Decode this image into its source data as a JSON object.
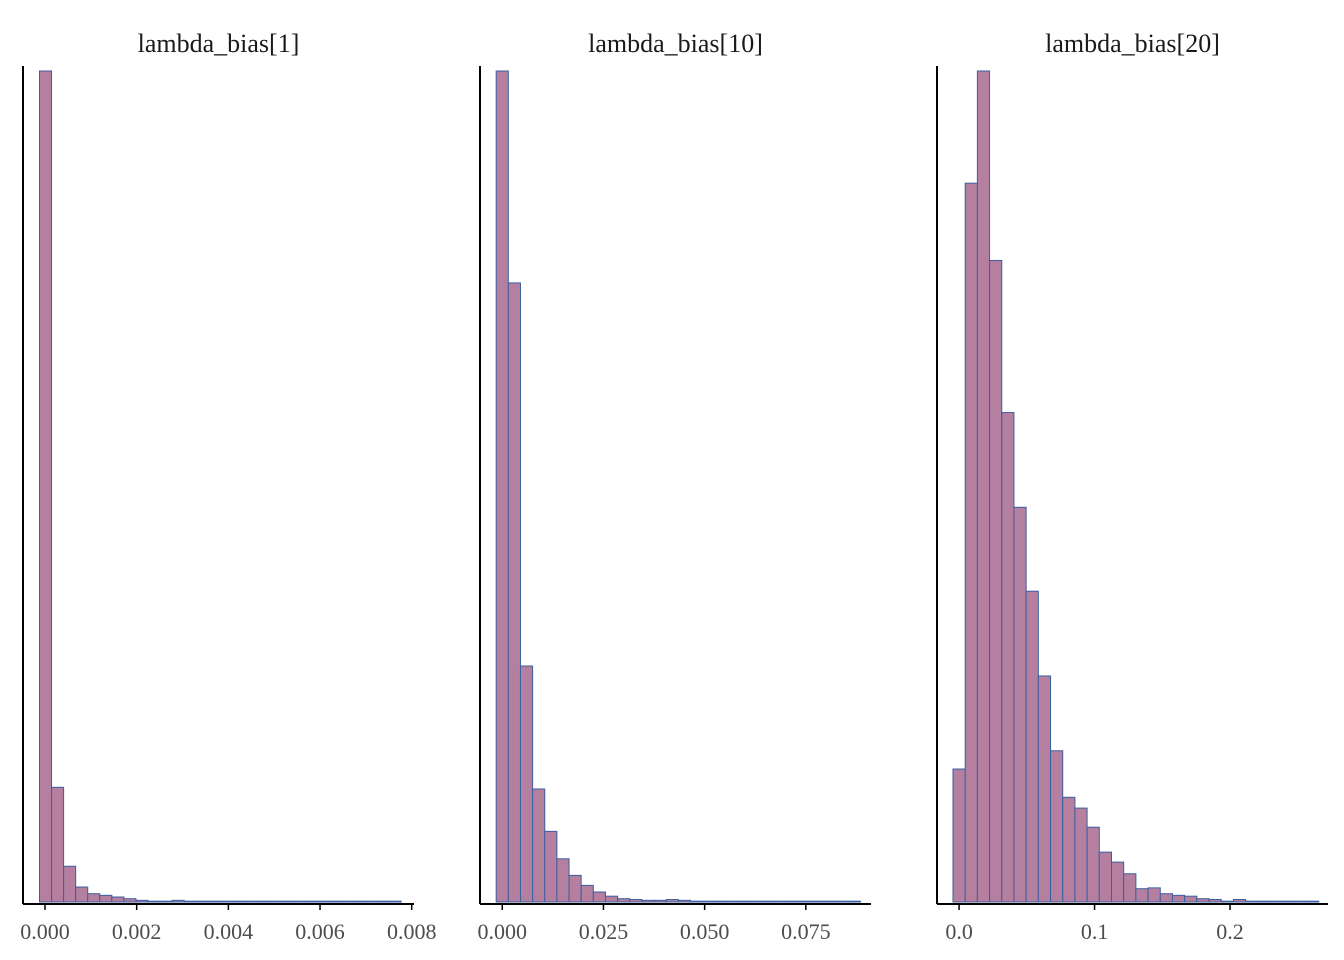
{
  "colors": {
    "bar_fill": "#b5809f",
    "bar_stroke": "#3b5fa0",
    "axis": "#000000",
    "tick_text": "#4d4d4d"
  },
  "chart_data": [
    {
      "type": "bar",
      "title": "lambda_bias[1]",
      "xlabel": "",
      "ylabel": "",
      "xlim": [
        -0.00048,
        0.00805
      ],
      "xticks": [
        0.0,
        0.002,
        0.004,
        0.006,
        0.008
      ],
      "xtick_labels": [
        "0.000",
        "0.002",
        "0.004",
        "0.006",
        "0.008"
      ],
      "y_axis_labels": false,
      "grid": false,
      "bin_start": -0.00012,
      "bin_width": 0.000263,
      "bin_counts": [
        1000,
        138,
        43,
        18,
        10,
        8,
        6,
        4,
        2,
        1,
        1,
        2,
        1,
        1,
        1,
        1,
        1,
        1,
        1,
        1,
        1,
        1,
        1,
        1,
        1,
        1,
        1,
        1,
        1,
        1
      ]
    },
    {
      "type": "bar",
      "title": "lambda_bias[10]",
      "xlabel": "",
      "ylabel": "",
      "xlim": [
        -0.0055,
        0.0911
      ],
      "xticks": [
        0.0,
        0.025,
        0.05,
        0.075
      ],
      "xtick_labels": [
        "0.000",
        "0.025",
        "0.050",
        "0.075"
      ],
      "y_axis_labels": false,
      "grid": false,
      "bin_start": -0.0015,
      "bin_width": 0.003,
      "bin_counts": [
        1000,
        745,
        284,
        136,
        85,
        52,
        32,
        20,
        12,
        7,
        4,
        3,
        2,
        2,
        3,
        2,
        1,
        1,
        1,
        1,
        1,
        1,
        1,
        1,
        1,
        1,
        1,
        1,
        1,
        1
      ]
    },
    {
      "type": "bar",
      "title": "lambda_bias[20]",
      "xlabel": "",
      "ylabel": "",
      "xlim": [
        -0.0163,
        0.2723
      ],
      "xticks": [
        0.0,
        0.1,
        0.2
      ],
      "xtick_labels": [
        "0.0",
        "0.1",
        "0.2"
      ],
      "y_axis_labels": false,
      "grid": false,
      "bin_start": -0.0045,
      "bin_width": 0.009,
      "bin_counts": [
        160,
        865,
        1000,
        772,
        589,
        475,
        374,
        272,
        182,
        126,
        113,
        90,
        60,
        48,
        34,
        16,
        17,
        10,
        8,
        7,
        4,
        3,
        1,
        3,
        1,
        1,
        1,
        1,
        1,
        1
      ]
    }
  ]
}
